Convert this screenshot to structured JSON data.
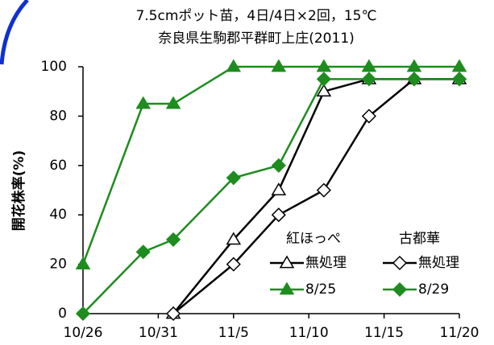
{
  "chart_data": {
    "type": "line",
    "title": "7.5cmポット苗，4日/4日×2回，15℃",
    "subtitle": "奈良県生駒郡平群町上庄(2011)",
    "y_label": "開花株率(%)",
    "xlim": [
      "10/26",
      "11/20"
    ],
    "xticks": [
      "10/26",
      "10/31",
      "11/5",
      "11/10",
      "11/15",
      "11/20"
    ],
    "ylim": [
      0,
      100
    ],
    "yticks": [
      0,
      20,
      40,
      60,
      80,
      100
    ],
    "grid": false,
    "series": [
      {
        "group": "紅ほっぺ",
        "name": "無処理",
        "color": "#000000",
        "marker": "triangle-open",
        "x": [
          "11/1",
          "11/5",
          "11/8",
          "11/11",
          "11/14",
          "11/17",
          "11/20"
        ],
        "values": [
          0,
          30,
          50,
          90,
          95,
          95,
          95
        ]
      },
      {
        "group": "紅ほっぺ",
        "name": "8/25",
        "color": "#1e8c1e",
        "marker": "triangle-filled",
        "x": [
          "10/26",
          "10/30",
          "11/1",
          "11/5",
          "11/8",
          "11/11",
          "11/14",
          "11/17",
          "11/20"
        ],
        "values": [
          20,
          85,
          85,
          100,
          100,
          100,
          100,
          100,
          100
        ]
      },
      {
        "group": "古都華",
        "name": "無処理",
        "color": "#000000",
        "marker": "diamond-open",
        "x": [
          "11/1",
          "11/5",
          "11/8",
          "11/11",
          "11/14",
          "11/17",
          "11/20"
        ],
        "values": [
          0,
          20,
          40,
          50,
          80,
          95,
          95
        ]
      },
      {
        "group": "古都華",
        "name": "8/29",
        "color": "#1e8c1e",
        "marker": "diamond-filled",
        "x": [
          "10/26",
          "10/30",
          "11/1",
          "11/5",
          "11/8",
          "11/11",
          "11/14",
          "11/17",
          "11/20"
        ],
        "values": [
          0,
          25,
          30,
          55,
          60,
          95,
          95,
          95,
          95
        ]
      }
    ]
  }
}
